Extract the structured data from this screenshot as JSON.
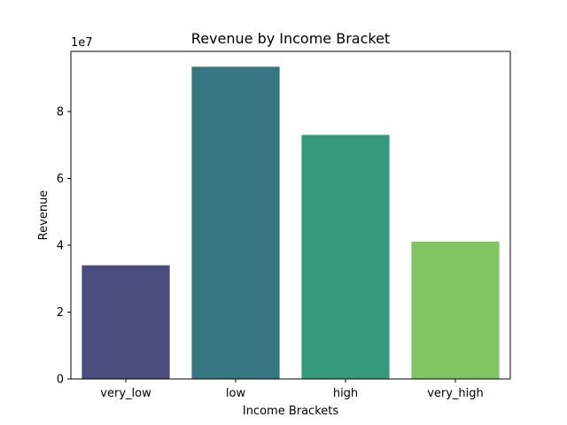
{
  "chart_data": {
    "type": "bar",
    "title": "Revenue by Income Bracket",
    "xlabel": "Income Brackets",
    "ylabel": "Revenue",
    "categories": [
      "very_low",
      "low",
      "high",
      "very_high"
    ],
    "values": [
      34000000,
      93400000,
      73000000,
      41100000
    ],
    "colors": [
      "#4a4c7e",
      "#377581",
      "#36997c",
      "#81c462"
    ],
    "ylim": [
      0,
      98000000
    ],
    "y_ticks": [
      0,
      20000000,
      40000000,
      60000000,
      80000000
    ],
    "y_tick_labels": [
      "0",
      "2",
      "4",
      "6",
      "8"
    ],
    "y_offset_label": "1e7",
    "grid": false,
    "legend": "none"
  }
}
